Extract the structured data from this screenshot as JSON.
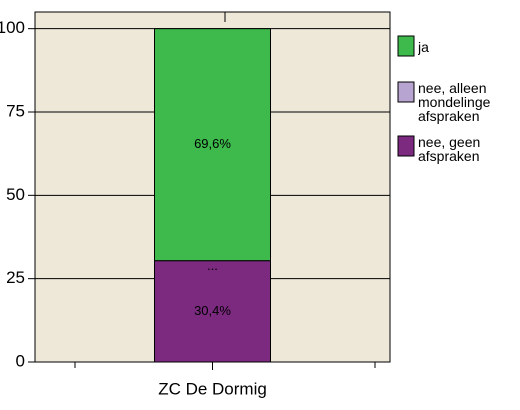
{
  "chart_data": {
    "type": "stacked_bar",
    "categories": [
      "ZC De Dormig"
    ],
    "series": [
      {
        "name": "nee, geen afspraken",
        "color": "#7b2a7f",
        "values": [
          30.4
        ],
        "value_labels": [
          "30,4%"
        ]
      },
      {
        "name": "nee, alleen mondelinge afspraken",
        "color": "#b8a4d0",
        "values": [
          0
        ],
        "value_labels": [
          "..."
        ]
      },
      {
        "name": "ja",
        "color": "#3dba4b",
        "values": [
          69.6
        ],
        "value_labels": [
          "69,6%"
        ]
      }
    ],
    "ylim": [
      0,
      105
    ],
    "yticks": [
      0,
      25,
      50,
      75,
      100
    ],
    "grid": true,
    "legend": "right"
  }
}
